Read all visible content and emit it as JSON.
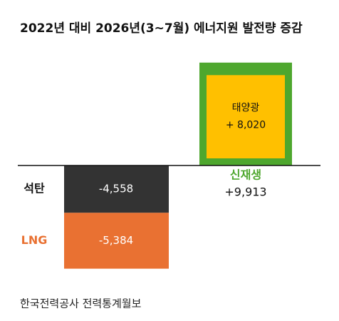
{
  "chart_data": {
    "type": "bar",
    "title": "2022년 대비 2026년(3~7월) 에너지원 발전량 증감",
    "source": "한국전력공사 전력통계월보",
    "series": [
      {
        "name": "석탄",
        "color": "#333333",
        "values": [
          -4558
        ],
        "value_labels": [
          "-4,558"
        ]
      },
      {
        "name": "LNG",
        "color": "#e97132",
        "values": [
          -5384
        ],
        "value_labels": [
          "-5,384"
        ]
      },
      {
        "name": "신재생",
        "color": "#4ea72e",
        "values": [
          9913
        ],
        "value_labels": [
          "+9,913"
        ]
      },
      {
        "name": "태양광",
        "color": "#ffc000",
        "values": [
          8020
        ],
        "value_labels": [
          "+ 8,020"
        ]
      }
    ]
  }
}
